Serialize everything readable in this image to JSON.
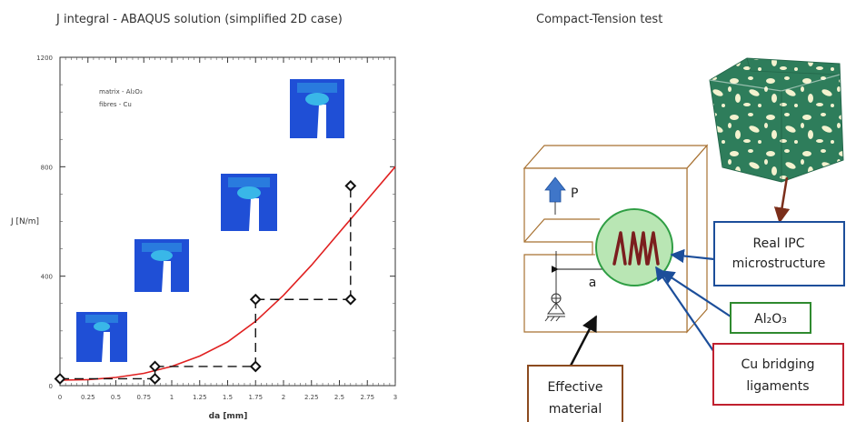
{
  "left_panel": {
    "heading": "J integral - ABAQUS solution  (simplified 2D case)",
    "annotation_lines": [
      "matrix - Al₂O₃",
      "fibres - Cu"
    ]
  },
  "right_panel": {
    "heading": "Compact-Tension test",
    "load_label": "P",
    "crack_length_label": "a",
    "callout_real_ipc": [
      "Real IPC",
      "microstructure"
    ],
    "callout_al2o3": "Al₂O₃",
    "callout_cu": [
      "Cu bridging",
      "ligaments"
    ],
    "callout_effective": [
      "Effective",
      "material"
    ]
  },
  "colors": {
    "fit_curve": "#e02020",
    "specimen_blue": "#1f4fd6",
    "specimen_cyan": "#39b7e8",
    "specimen_outline": "#a87232",
    "zone_fill": "#b9e6b4",
    "zone_stroke": "#2f9e44",
    "fibre": "#7b1e1e",
    "arrow_blue": "#1c4e9a",
    "ipc_dark": "#2e7d5b",
    "ipc_light": "#f4f2cf",
    "box_blue": "#1c4e9a",
    "box_green": "#2f8a2f",
    "box_red": "#c0202f",
    "box_brown": "#8b4a1f"
  },
  "chart_data": {
    "type": "scatter",
    "title": "",
    "xlabel": "da [mm]",
    "ylabel": "J [N/m]",
    "xlim": [
      0,
      3
    ],
    "ylim": [
      0,
      1200
    ],
    "x_ticks": [
      "0",
      "0.25",
      "0.5",
      "0.75",
      "1",
      "1.25",
      "1.5",
      "1.75",
      "2",
      "2.25",
      "2.5",
      "2.75",
      "3"
    ],
    "y_ticks": [
      "0",
      "400",
      "800",
      "1200"
    ],
    "series": [
      {
        "points": [
          [
            0,
            25
          ],
          [
            0.85,
            25
          ],
          [
            0.85,
            70
          ],
          [
            1.75,
            70
          ],
          [
            1.75,
            315
          ],
          [
            2.6,
            315
          ],
          [
            2.6,
            730
          ]
        ]
      }
    ],
    "fit_curve": {
      "x": [
        0,
        0.25,
        0.5,
        0.75,
        1,
        1.25,
        1.5,
        1.75,
        2,
        2.25,
        2.5,
        2.75,
        3
      ],
      "y": [
        20,
        22,
        30,
        45,
        70,
        108,
        160,
        235,
        330,
        440,
        560,
        680,
        800
      ]
    }
  }
}
